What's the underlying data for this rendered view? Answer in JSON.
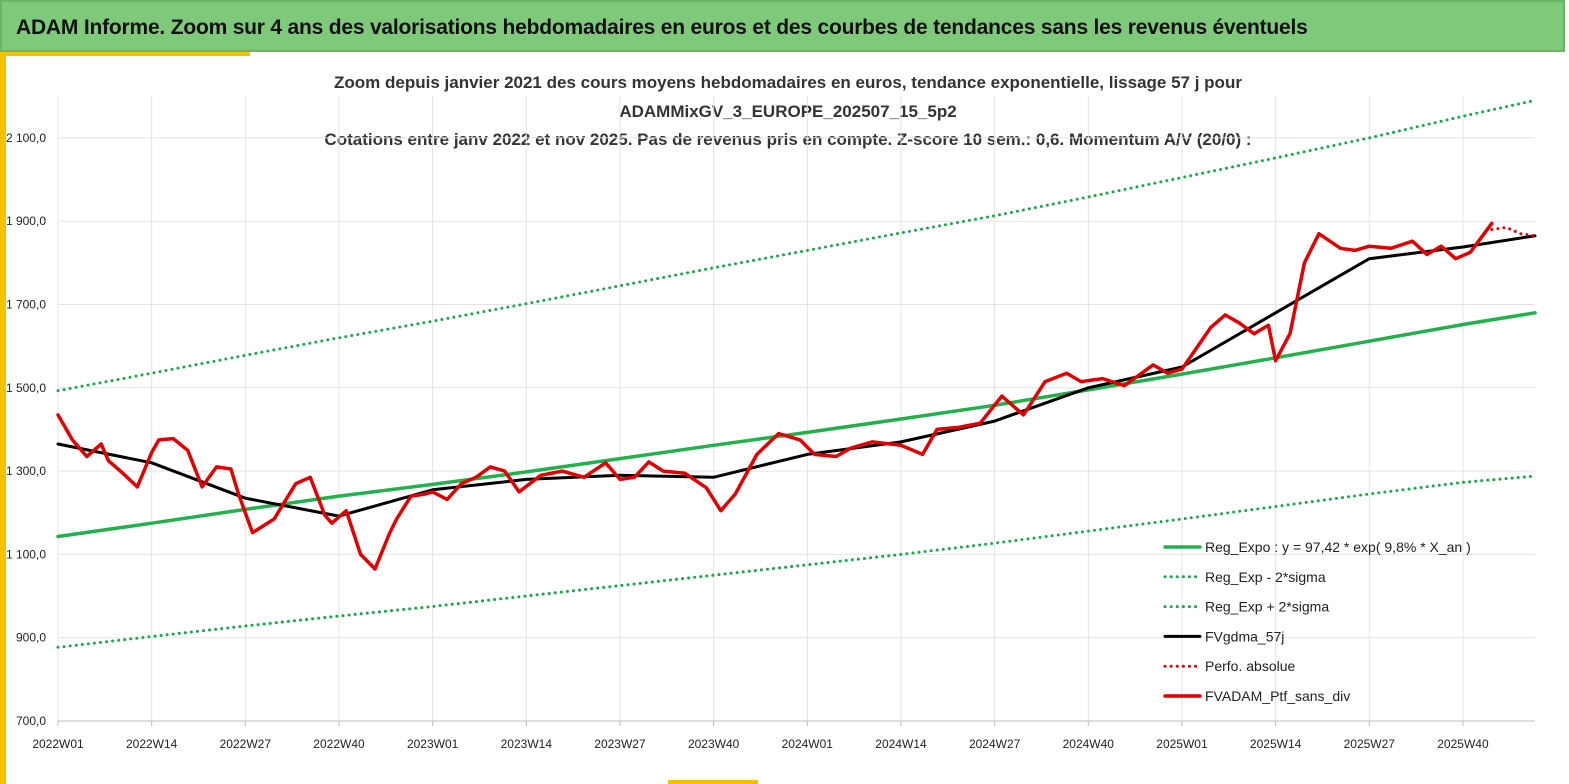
{
  "header": {
    "title": "ADAM Informe. Zoom sur 4 ans des valorisations hebdomadaires en euros et des courbes de tendances sans les revenus éventuels"
  },
  "colors": {
    "banner": "#7fc97a",
    "trend": "#22b14c",
    "sigma": "#19a84a",
    "smooth": "#000000",
    "perf": "#e00000",
    "accent": "#f2c200"
  },
  "chart_data": {
    "type": "line",
    "title": [
      "Zoom depuis janvier 2021 des cours moyens hebdomadaires  en euros, tendance exponentielle, lissage 57 j pour",
      "ADAMMixGV_3_EUROPE_202507_15_5p2",
      "Cotations entre janv 2022 et nov 2025. Pas de revenus pris en compte. Z-score 10 sem.: 0,6. Momentum A/V (20/0) :"
    ],
    "x_tick_labels": [
      "2022W01",
      "2022W14",
      "2022W27",
      "2022W40",
      "2023W01",
      "2023W14",
      "2023W27",
      "2023W40",
      "2024W01",
      "2024W14",
      "2024W27",
      "2024W40",
      "2025W01",
      "2025W14",
      "2025W27",
      "2025W40"
    ],
    "y_tick_labels": [
      "700,0",
      "900,0",
      "1 100,0",
      "1 300,0",
      "1 500,0",
      "1 700,0",
      "1 900,0",
      "2 100,0"
    ],
    "ylim": [
      700,
      2250
    ],
    "grid": true,
    "legend_position": "bottom-right",
    "x_anchor_weeks": [
      0,
      13,
      26,
      39,
      52,
      65,
      78,
      91,
      104,
      117,
      130,
      143,
      156,
      169,
      182,
      195,
      205
    ],
    "series": [
      {
        "name": "Reg_Expo : y = 97,42 * exp( 9,8% *  X_an )",
        "style": "solid-thick",
        "color": "#22b14c",
        "values": [
          1143,
          1175,
          1208,
          1240,
          1268,
          1298,
          1330,
          1362,
          1393,
          1425,
          1458,
          1495,
          1533,
          1572,
          1612,
          1652,
          1680
        ]
      },
      {
        "name": "Reg_Exp - 2*sigma",
        "style": "dotted",
        "color": "#19a84a",
        "values": [
          877,
          903,
          928,
          952,
          975,
          1000,
          1025,
          1050,
          1075,
          1100,
          1127,
          1156,
          1185,
          1215,
          1245,
          1273,
          1288
        ]
      },
      {
        "name": "Reg_Exp + 2*sigma",
        "style": "dotted",
        "color": "#19a84a",
        "values": [
          1493,
          1535,
          1578,
          1620,
          1660,
          1702,
          1745,
          1788,
          1830,
          1872,
          1913,
          1958,
          2005,
          2052,
          2100,
          2152,
          2190
        ]
      },
      {
        "name": "FVgdma_57j",
        "style": "solid",
        "color": "#000000",
        "values": [
          1365,
          1320,
          1235,
          1192,
          1255,
          1280,
          1290,
          1285,
          1340,
          1370,
          1420,
          1500,
          1550,
          1680,
          1810,
          1838,
          1865
        ]
      }
    ],
    "perf_series": [
      {
        "name": "Perfo. absolue",
        "style": "dotted",
        "color": "#e00000",
        "x_weeks": [
          199,
          201,
          203,
          205
        ],
        "values": [
          1880,
          1885,
          1870,
          1865
        ]
      },
      {
        "name": "FVADAM_Ptf_sans_div",
        "style": "solid-thick",
        "color": "#e00000",
        "x_weeks": [
          0,
          2,
          4,
          6,
          7,
          9,
          11,
          13,
          14,
          16,
          18,
          20,
          22,
          24,
          25,
          27,
          30,
          33,
          35,
          37,
          38,
          40,
          42,
          44,
          46,
          47,
          49,
          51,
          52,
          54,
          56,
          58,
          60,
          62,
          64,
          67,
          70,
          73,
          76,
          78,
          80,
          82,
          84,
          87,
          90,
          92,
          94,
          97,
          100,
          103,
          105,
          108,
          110,
          113,
          117,
          120,
          122,
          125,
          128,
          131,
          134,
          137,
          140,
          142,
          145,
          148,
          152,
          154,
          156,
          158,
          160,
          162,
          164,
          166,
          168,
          169,
          171,
          173,
          175,
          178,
          180,
          182,
          185,
          188,
          190,
          192,
          194,
          196,
          199
        ],
        "values": [
          1435,
          1375,
          1335,
          1365,
          1325,
          1295,
          1262,
          1345,
          1375,
          1378,
          1350,
          1262,
          1310,
          1305,
          1248,
          1152,
          1185,
          1270,
          1285,
          1195,
          1175,
          1205,
          1100,
          1065,
          1150,
          1185,
          1240,
          1245,
          1250,
          1232,
          1270,
          1285,
          1310,
          1300,
          1250,
          1290,
          1300,
          1285,
          1320,
          1280,
          1285,
          1322,
          1300,
          1295,
          1260,
          1205,
          1245,
          1340,
          1390,
          1375,
          1340,
          1335,
          1355,
          1370,
          1362,
          1340,
          1400,
          1405,
          1415,
          1480,
          1435,
          1515,
          1535,
          1515,
          1522,
          1505,
          1555,
          1535,
          1545,
          1595,
          1645,
          1675,
          1655,
          1630,
          1650,
          1565,
          1630,
          1800,
          1870,
          1835,
          1830,
          1840,
          1835,
          1852,
          1820,
          1840,
          1810,
          1825,
          1895
        ]
      }
    ]
  }
}
